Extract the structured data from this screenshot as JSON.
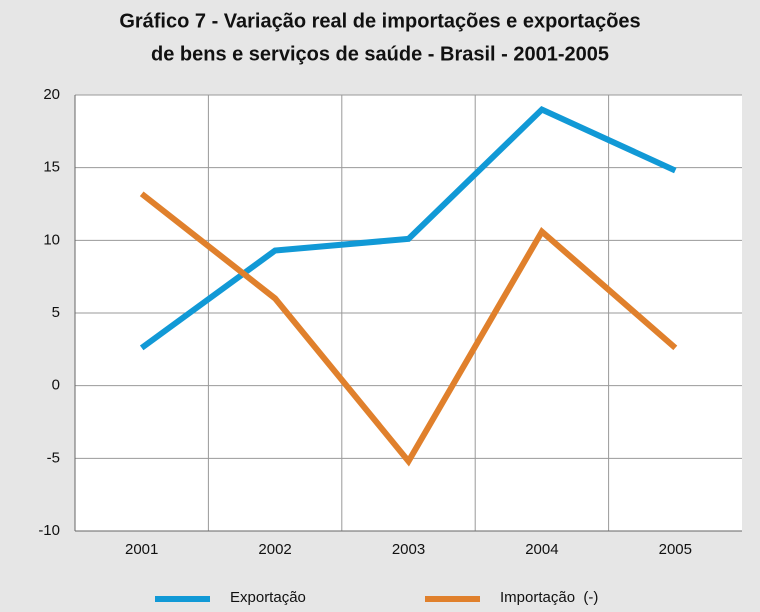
{
  "chart_data": {
    "type": "line",
    "title": [
      "Gráfico 7 - Variação real de importações e exportações",
      "de bens e serviços de saúde - Brasil - 2001-2005"
    ],
    "categories": [
      "2001",
      "2002",
      "2003",
      "2004",
      "2005"
    ],
    "series": [
      {
        "name": "Exportação",
        "color": "#1199d6",
        "values": [
          2.6,
          9.3,
          10.1,
          19.0,
          14.8
        ]
      },
      {
        "name": "Importação  (-)",
        "color": "#e0802c",
        "values": [
          13.2,
          6.0,
          -5.2,
          10.6,
          2.6
        ]
      }
    ],
    "ylim": [
      -10,
      20
    ],
    "yticks": [
      -10,
      -5,
      0,
      5,
      10,
      15,
      20
    ],
    "grid": true
  }
}
